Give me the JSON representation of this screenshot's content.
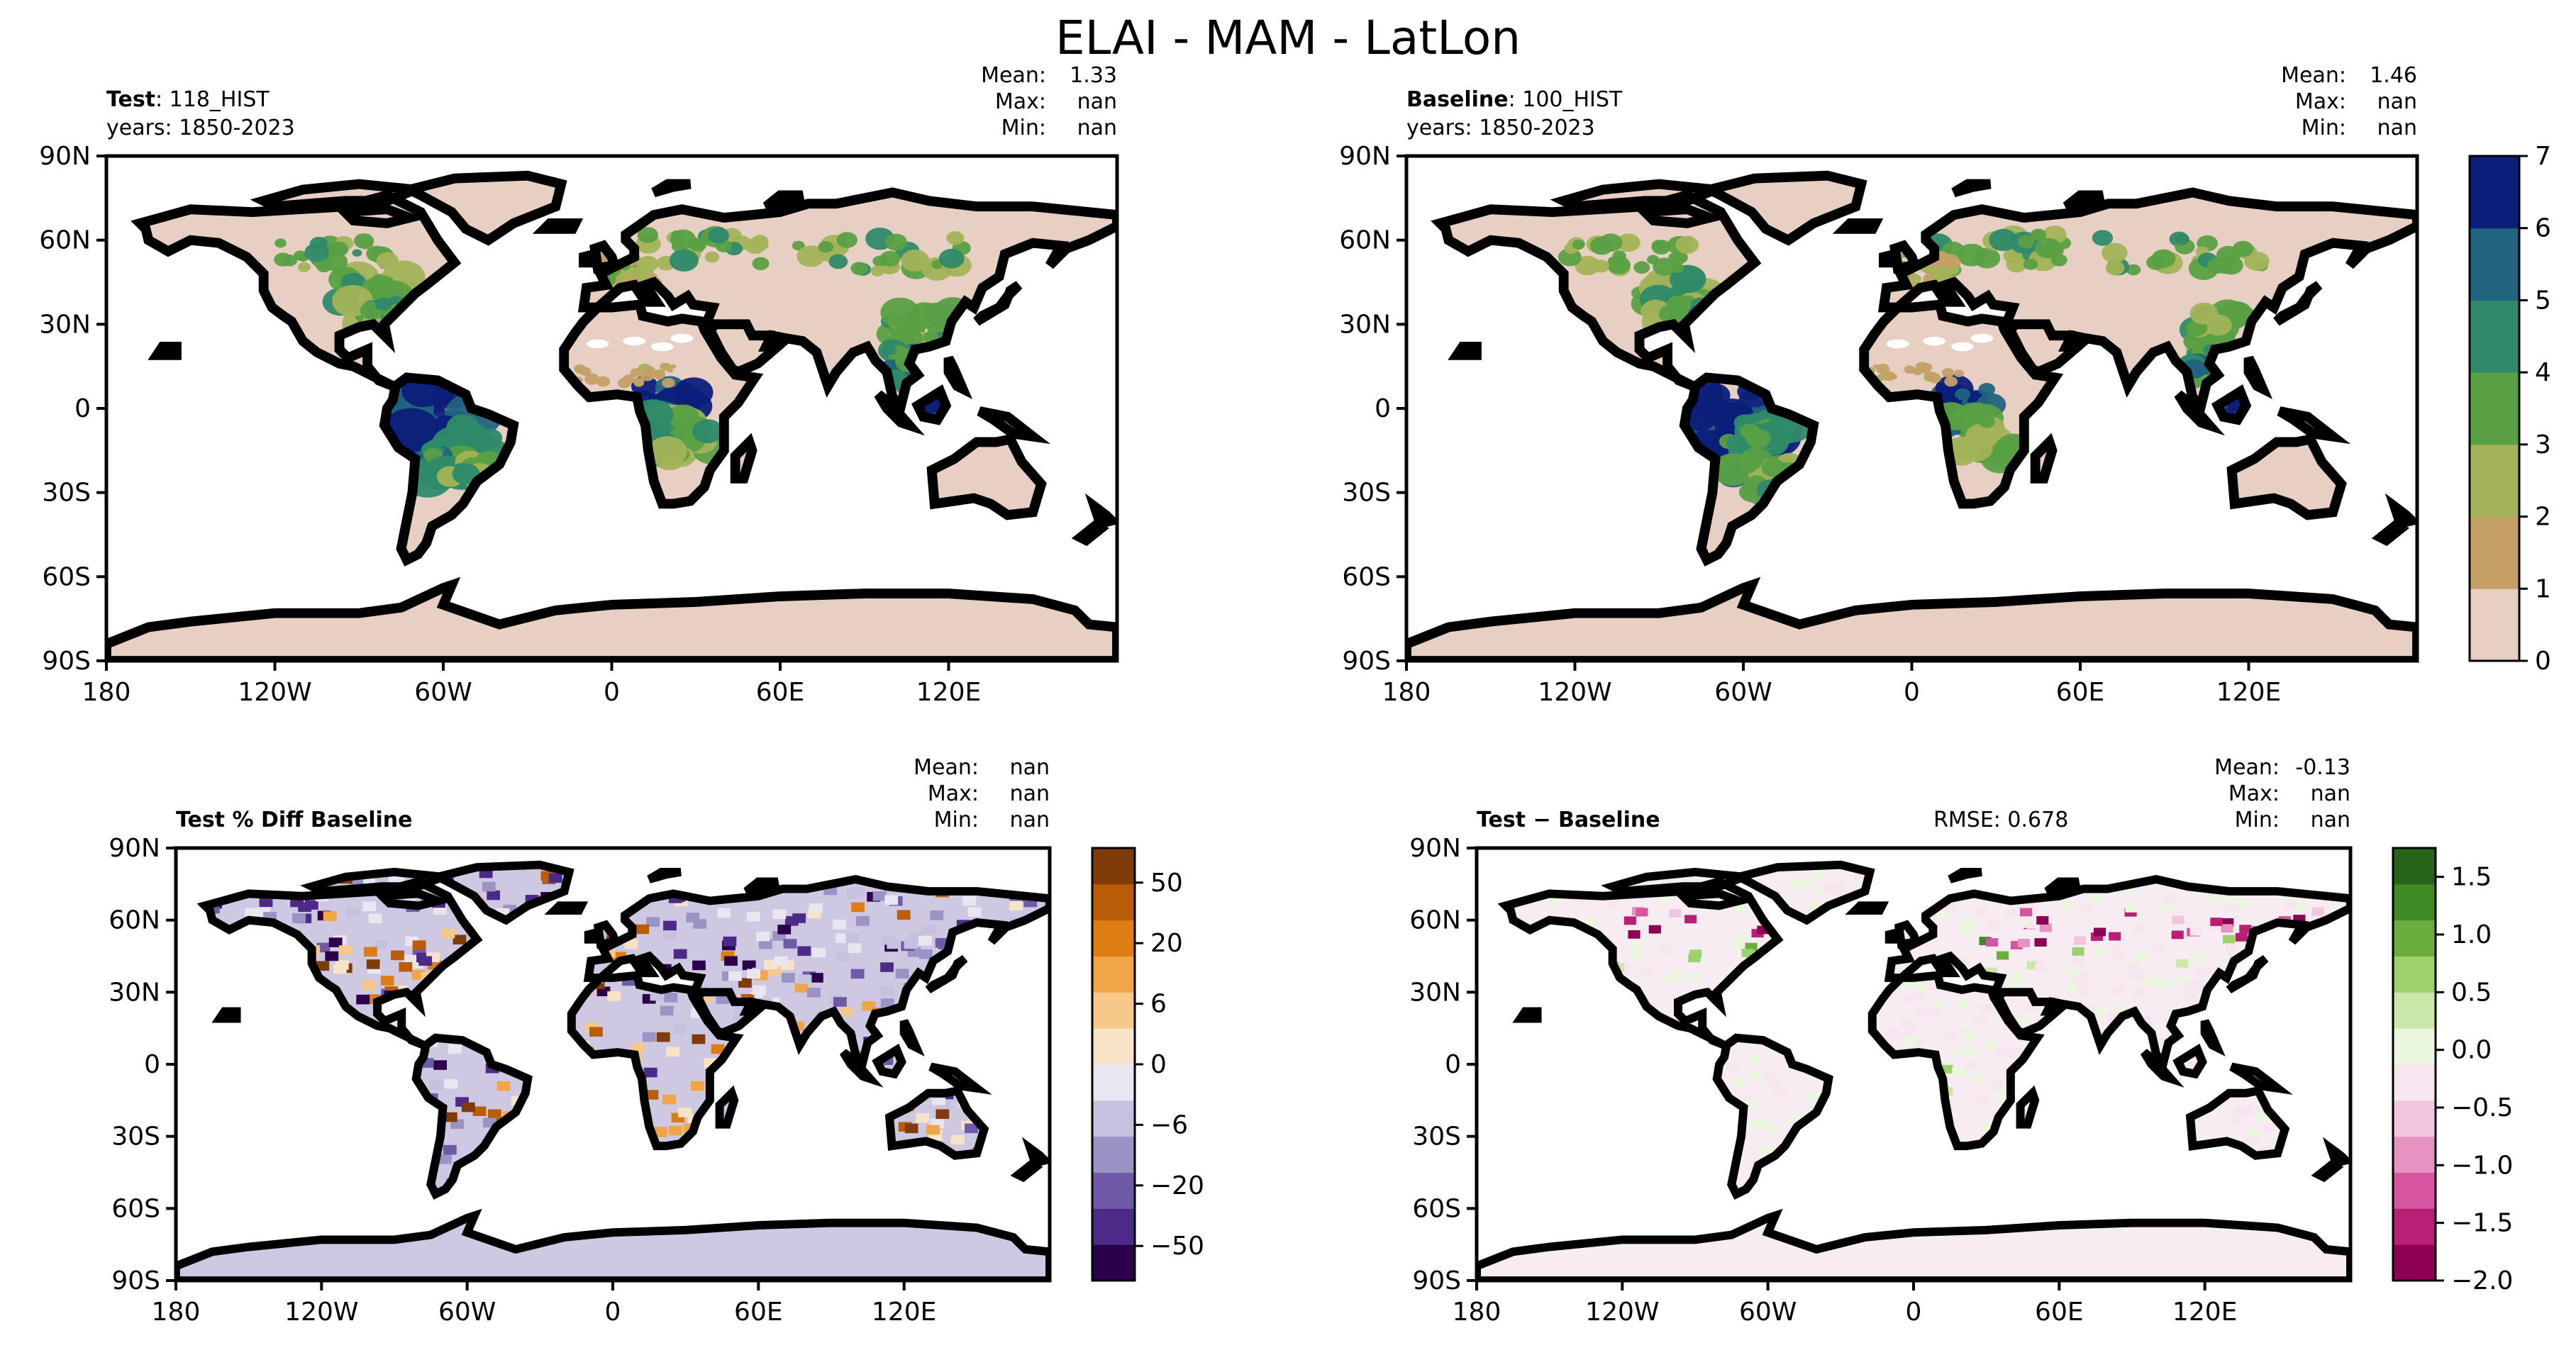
{
  "suptitle": "ELAI - MAM - LatLon",
  "colors": {
    "ocean": "#ffffff",
    "land_base": "#e8cfc4",
    "elai_levels": [
      "#e8cfc4",
      "#c4a067",
      "#a3b358",
      "#5aa044",
      "#2f8a6a",
      "#22637f",
      "#0c1f7a"
    ],
    "pct_pos": [
      "#f7e3c6",
      "#f6c98a",
      "#f0a546",
      "#de7d14",
      "#b95d08",
      "#7f3b08"
    ],
    "pct_neg": [
      "#e9e6f2",
      "#c5c1de",
      "#9a93c4",
      "#6f5aa7",
      "#4d2a87",
      "#2d004b"
    ],
    "diff_pos": [
      "#eaf6dd",
      "#cbe8aa",
      "#9dd16c",
      "#6bae3e",
      "#3e8b25",
      "#276419"
    ],
    "diff_neg": [
      "#f7e5ef",
      "#f1c6de",
      "#e793c1",
      "#d6559f",
      "#b81f75",
      "#8e0152"
    ],
    "coast": "#000000"
  },
  "panels": {
    "test": {
      "label_bold": "Test",
      "label_rest": ": 118_HIST",
      "years": "years: 1850-2023",
      "stats": [
        [
          "Mean:",
          "1.33"
        ],
        [
          "Max:",
          "nan"
        ],
        [
          "Min:",
          "nan"
        ]
      ]
    },
    "baseline": {
      "label_bold": "Baseline",
      "label_rest": ": 100_HIST",
      "years": "years: 1850-2023",
      "stats": [
        [
          "Mean:",
          "1.46"
        ],
        [
          "Max:",
          "nan"
        ],
        [
          "Min:",
          "nan"
        ]
      ]
    },
    "pctdiff": {
      "label_bold": "Test % Diff Baseline",
      "stats": [
        [
          "Mean:",
          "nan"
        ],
        [
          "Max:",
          "nan"
        ],
        [
          "Min:",
          "nan"
        ]
      ]
    },
    "diff": {
      "label_bold": "Test − Baseline",
      "rmse": "RMSE: 0.678",
      "stats": [
        [
          "Mean:",
          "-0.13"
        ],
        [
          "Max:",
          "nan"
        ],
        [
          "Min:",
          "nan"
        ]
      ]
    }
  },
  "axes": {
    "lat_ticks": [
      "90N",
      "60N",
      "30N",
      "0",
      "30S",
      "60S",
      "90S"
    ],
    "lon_ticks": [
      "180",
      "120W",
      "60W",
      "0",
      "60E",
      "120E"
    ]
  },
  "colorbars": {
    "elai_ticks": [
      "0",
      "1",
      "2",
      "3",
      "4",
      "5",
      "6",
      "7"
    ],
    "pct_ticks": [
      "50",
      "20",
      "6",
      "0",
      "−6",
      "−20",
      "−50"
    ],
    "diff_ticks": [
      "1.5",
      "1.0",
      "0.5",
      "0.0",
      "−0.5",
      "−1.0",
      "−1.5",
      "−2.0"
    ]
  },
  "chart_data": [
    {
      "type": "heatmap",
      "title": "",
      "panel": "Test : 118_HIST",
      "xlabel": "",
      "ylabel": "",
      "xlim": [
        -180,
        180
      ],
      "ylim": [
        -90,
        90
      ],
      "colorbar": {
        "min": 0,
        "max": 7,
        "ticks": [
          0,
          1,
          2,
          3,
          4,
          5,
          6,
          7
        ]
      },
      "stats": {
        "mean": 1.33,
        "max": "nan",
        "min": "nan"
      }
    },
    {
      "type": "heatmap",
      "title": "",
      "panel": "Baseline : 100_HIST",
      "xlabel": "",
      "ylabel": "",
      "xlim": [
        -180,
        180
      ],
      "ylim": [
        -90,
        90
      ],
      "colorbar": {
        "min": 0,
        "max": 7,
        "ticks": [
          0,
          1,
          2,
          3,
          4,
          5,
          6,
          7
        ]
      },
      "stats": {
        "mean": 1.46,
        "max": "nan",
        "min": "nan"
      }
    },
    {
      "type": "heatmap",
      "title": "Test % Diff Baseline",
      "xlabel": "",
      "ylabel": "",
      "xlim": [
        -180,
        180
      ],
      "ylim": [
        -90,
        90
      ],
      "colorbar": {
        "ticks": [
          -50,
          -20,
          -6,
          0,
          6,
          20,
          50
        ]
      },
      "stats": {
        "mean": "nan",
        "max": "nan",
        "min": "nan"
      }
    },
    {
      "type": "heatmap",
      "title": "Test − Baseline",
      "xlabel": "",
      "ylabel": "",
      "xlim": [
        -180,
        180
      ],
      "ylim": [
        -90,
        90
      ],
      "colorbar": {
        "min": -2.0,
        "max": 1.75,
        "ticks": [
          -2.0,
          -1.5,
          -1.0,
          -0.5,
          0.0,
          0.5,
          1.0,
          1.5
        ]
      },
      "stats": {
        "mean": -0.13,
        "max": "nan",
        "min": "nan",
        "rmse": 0.678
      }
    }
  ]
}
